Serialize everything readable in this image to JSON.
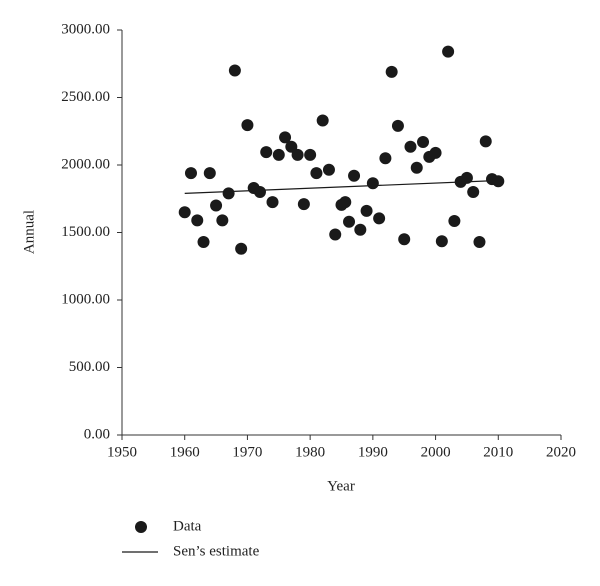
{
  "chart_data": {
    "type": "scatter",
    "xlabel": "Year",
    "ylabel": "Annual",
    "xlim": [
      1950,
      2020
    ],
    "xticks": [
      1950,
      1960,
      1970,
      1980,
      1990,
      2000,
      2010,
      2020
    ],
    "ylim": [
      0,
      3000
    ],
    "yticks": [
      {
        "value": 0,
        "label": "0.00"
      },
      {
        "value": 500,
        "label": "500.00"
      },
      {
        "value": 1000,
        "label": "1000.00"
      },
      {
        "value": 1500,
        "label": "1500.00"
      },
      {
        "value": 2000,
        "label": "2000.00"
      },
      {
        "value": 2500,
        "label": "2500.00"
      },
      {
        "value": 3000,
        "label": "3000.00"
      }
    ],
    "grid": false,
    "legend": "bottom",
    "series": [
      {
        "name": "Data",
        "type": "scatter",
        "color": "#1a1a1a",
        "x": [
          1960,
          1961,
          1962,
          1963,
          1964,
          1965,
          1966,
          1967,
          1968,
          1969,
          1970,
          1971,
          1972,
          1973,
          1974,
          1975,
          1976,
          1977,
          1978,
          1979,
          1980,
          1981,
          1982,
          1983,
          1984,
          1985,
          1985.6,
          1986.2,
          1987,
          1988,
          1989,
          1990,
          1991,
          1992,
          1993,
          1994,
          1995,
          1996,
          1997,
          1998,
          1999,
          2000,
          2001,
          2002,
          2003,
          2004,
          2005,
          2006,
          2007,
          2008,
          2009,
          2010
        ],
        "values": [
          1650,
          1940,
          1590,
          1430,
          1940,
          1700,
          1590,
          1790,
          2700,
          1380,
          2295,
          1830,
          1800,
          2095,
          1725,
          2075,
          2205,
          2135,
          2075,
          1710,
          2075,
          1940,
          2330,
          1965,
          1485,
          1705,
          1725,
          1580,
          1920,
          1520,
          1660,
          1865,
          1605,
          2050,
          2690,
          2290,
          1450,
          2135,
          1980,
          2170,
          2060,
          2090,
          1435,
          2840,
          1585,
          1875,
          1905,
          1800,
          1430,
          2175,
          1895,
          1880
        ]
      },
      {
        "name": "Sen’s estimate",
        "type": "line",
        "color": "#1a1a1a",
        "x": [
          1960,
          2010
        ],
        "values": [
          1790,
          1885
        ]
      }
    ]
  }
}
